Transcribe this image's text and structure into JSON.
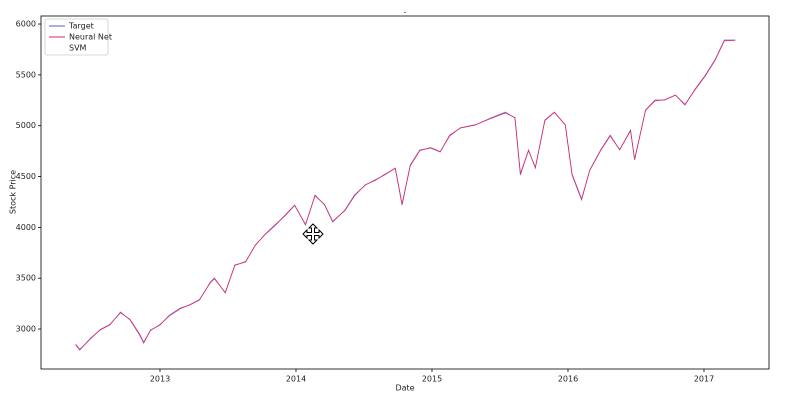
{
  "chart_data": {
    "type": "line",
    "title": "-",
    "xlabel": "Date",
    "ylabel": "Stock Price",
    "x": [
      2012.38,
      2012.41,
      2012.49,
      2012.56,
      2012.63,
      2012.71,
      2012.78,
      2012.85,
      2012.88,
      2012.93,
      2013.0,
      2013.07,
      2013.15,
      2013.22,
      2013.29,
      2013.37,
      2013.4,
      2013.48,
      2013.55,
      2013.63,
      2013.7,
      2013.77,
      2013.85,
      2013.92,
      2013.99,
      2014.07,
      2014.14,
      2014.21,
      2014.27,
      2014.36,
      2014.43,
      2014.51,
      2014.58,
      2014.65,
      2014.73,
      2014.78,
      2014.84,
      2014.91,
      2014.99,
      2015.06,
      2015.13,
      2015.21,
      2015.32,
      2015.43,
      2015.54,
      2015.61,
      2015.65,
      2015.71,
      2015.76,
      2015.83,
      2015.9,
      2015.98,
      2016.03,
      2016.1,
      2016.16,
      2016.24,
      2016.31,
      2016.38,
      2016.46,
      2016.49,
      2016.57,
      2016.64,
      2016.71,
      2016.79,
      2016.86,
      2016.93,
      2017.01,
      2017.08,
      2017.15,
      2017.23
    ],
    "series": [
      {
        "name": "Target",
        "color": "#5a5ad6",
        "values": [
          2843,
          2793,
          2911,
          2990,
          3039,
          3167,
          3089,
          2941,
          2862,
          2990,
          3039,
          3138,
          3207,
          3236,
          3285,
          3462,
          3502,
          3354,
          3630,
          3659,
          3826,
          3925,
          4023,
          4121,
          4220,
          4023,
          4318,
          4220,
          4052,
          4171,
          4318,
          4416,
          4466,
          4515,
          4584,
          4220,
          4613,
          4761,
          4780,
          4741,
          4908,
          4977,
          5007,
          5075,
          5134,
          5075,
          4515,
          4761,
          4584,
          5056,
          5134,
          5007,
          4515,
          4269,
          4564,
          4761,
          4908,
          4761,
          4957,
          4662,
          5154,
          5252,
          5252,
          5302,
          5203,
          5351,
          5498,
          5646,
          5843,
          5843
        ]
      },
      {
        "name": "Neural Net",
        "color": "#e8245a",
        "values": [
          2850,
          2800,
          2905,
          2995,
          3045,
          3160,
          3095,
          2950,
          2870,
          2985,
          3045,
          3130,
          3200,
          3240,
          3290,
          3455,
          3495,
          3360,
          3625,
          3665,
          3820,
          3930,
          4030,
          4115,
          4215,
          4030,
          4310,
          4225,
          4060,
          4165,
          4310,
          4420,
          4460,
          4520,
          4580,
          4230,
          4605,
          4755,
          4785,
          4745,
          4900,
          4980,
          5010,
          5070,
          5125,
          5080,
          4530,
          4755,
          4590,
          5050,
          5130,
          5010,
          4525,
          4280,
          4560,
          4755,
          4900,
          4765,
          4950,
          4670,
          5150,
          5245,
          5255,
          5300,
          5210,
          5345,
          5490,
          5640,
          5835,
          5840
        ]
      },
      {
        "name": "SVM",
        "values": [
          null,
          null,
          null,
          null,
          null,
          null,
          null,
          null,
          null,
          null,
          null,
          null,
          null,
          null,
          null,
          null,
          null,
          null,
          null,
          null,
          null,
          null,
          null,
          null,
          null,
          null,
          null,
          null,
          null,
          null,
          null,
          null,
          null,
          null,
          null,
          null,
          null,
          null,
          null,
          null,
          null,
          null,
          null,
          null,
          null,
          null,
          null,
          null,
          null,
          null,
          null,
          null,
          null,
          null,
          null,
          null,
          null,
          null,
          null,
          null,
          null,
          null,
          null,
          null,
          null,
          null,
          null,
          null,
          null,
          null
        ]
      }
    ],
    "xlim": [
      2012.125,
      2017.478
    ],
    "xticks": [
      2013,
      2014,
      2015,
      2016,
      2017
    ],
    "ylim": [
      2607,
      6079
    ],
    "yticks": [
      3000,
      3500,
      4000,
      4500,
      5000,
      5500,
      6000
    ],
    "grid": false,
    "legend": "upper left"
  }
}
